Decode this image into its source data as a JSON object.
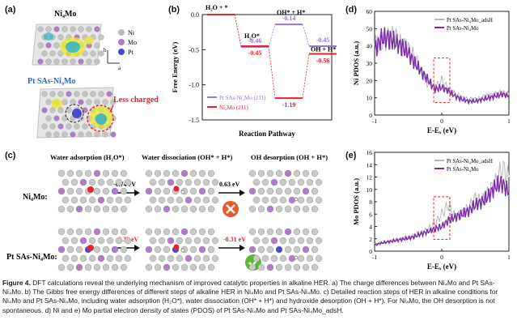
{
  "panel_a": {
    "label": "(a)",
    "top_title": "Ni₄Mo",
    "legend": [
      {
        "label": "Ni",
        "color": "#b9b9b9"
      },
      {
        "label": "Mo",
        "color": "#b07cc6"
      },
      {
        "label": "Pt",
        "color": "#4a4ad0"
      }
    ],
    "axis_b": "b",
    "axis_a": "a",
    "bottom_title": "Pt SAs-Ni₄Mo",
    "less_charged": "Less charged"
  },
  "panel_b": {
    "label": "(b)",
    "chart_data": {
      "type": "line",
      "title": "",
      "xlabel": "Reaction Pathway",
      "ylabel": "Free Energy (eV)",
      "ylim": [
        -1.5,
        0.0
      ],
      "yticks": [
        "0.0",
        "-0.5",
        "-1.0",
        "-1.5"
      ],
      "step_labels": [
        "H₂O + *",
        "H₂O*",
        "OH* + H*",
        "OH + H*"
      ],
      "series": [
        {
          "name": "Pt SAs-Ni₄Mo (211)",
          "color": "#9a78c9",
          "values": [
            0.0,
            -0.46,
            -0.14,
            -0.45
          ],
          "value_labels": [
            "",
            "-0.46",
            "-0.14",
            "-0.45"
          ]
        },
        {
          "name": "Ni₄Mo (211)",
          "color": "#e8232c",
          "values": [
            0.0,
            -0.45,
            -1.19,
            -0.56
          ],
          "value_labels": [
            "",
            "-0.45",
            "-1.19",
            "-0.56"
          ]
        }
      ]
    }
  },
  "panel_c": {
    "label": "(c)",
    "steps": [
      "Water adsorption (H₂O*)",
      "Water dissociation (OH* + H*)",
      "OH desorption (OH + H*)"
    ],
    "rows": [
      {
        "name": "Ni₄Mo:",
        "e1": "-0.74 eV",
        "e2": "0.63 eV",
        "result": "not spontaneous"
      },
      {
        "name": "Pt SAs-Ni₄Mo:",
        "e1": "0.32 eV",
        "e2": "-0.31 eV",
        "result": "spontaneous"
      }
    ]
  },
  "panel_d": {
    "label": "(d)",
    "chart_data": {
      "type": "line",
      "xlabel": "E-Eₓ (eV)",
      "ylabel": "Ni PDOS (a.u.)",
      "xlim": [
        -1,
        1
      ],
      "ylim": [
        0,
        60
      ],
      "xticks": [
        "-1",
        "0",
        "1"
      ],
      "yticks": [
        "0",
        "10",
        "20",
        "30",
        "40",
        "50",
        "60"
      ],
      "x": [
        -1.0,
        -0.9,
        -0.8,
        -0.7,
        -0.6,
        -0.5,
        -0.4,
        -0.3,
        -0.2,
        -0.1,
        0.0,
        0.1,
        0.2,
        0.3,
        0.4,
        0.5,
        0.6,
        0.7,
        0.8,
        0.9,
        1.0
      ],
      "series": [
        {
          "name": "Pt SAs-Ni₄Mo_adsH",
          "color": "#b8b8b8",
          "values": [
            40,
            42,
            44,
            46,
            40,
            38,
            33,
            24,
            18,
            16,
            20,
            15,
            12,
            10,
            9,
            9,
            10,
            11,
            12,
            13,
            12
          ]
        },
        {
          "name": "Pt SAs-Ni₄Mo",
          "color": "#7a2aa8",
          "values": [
            38,
            44,
            45,
            42,
            40,
            36,
            30,
            25,
            20,
            15,
            16,
            14,
            11,
            9,
            8,
            8,
            9,
            10,
            11,
            12,
            11
          ]
        }
      ]
    }
  },
  "panel_e": {
    "label": "(e)",
    "chart_data": {
      "type": "line",
      "xlabel": "E-Eₓ (eV)",
      "ylabel": "Mo PDOS (a.u.)",
      "xlim": [
        -1,
        1
      ],
      "ylim": [
        0,
        16
      ],
      "xticks": [
        "-1",
        "0",
        "1"
      ],
      "yticks": [
        "0",
        "2",
        "4",
        "6",
        "8",
        "10",
        "12",
        "14",
        "16"
      ],
      "x": [
        -1.0,
        -0.9,
        -0.8,
        -0.7,
        -0.6,
        -0.5,
        -0.4,
        -0.3,
        -0.2,
        -0.1,
        0.0,
        0.1,
        0.2,
        0.3,
        0.4,
        0.5,
        0.6,
        0.7,
        0.8,
        0.9,
        1.0
      ],
      "series": [
        {
          "name": "Pt SAs-Ni₄Mo_adsH",
          "color": "#b8b8b8",
          "values": [
            1.2,
            1.4,
            1.6,
            1.8,
            2.0,
            2.2,
            2.6,
            3.0,
            3.6,
            4.5,
            6.0,
            7.5,
            5.5,
            6.0,
            7.0,
            8.5,
            8.0,
            9.5,
            11.0,
            13.5,
            12.0
          ]
        },
        {
          "name": "Pt SAs-Ni₄Mo",
          "color": "#7a2aa8",
          "values": [
            1.0,
            1.3,
            1.5,
            1.7,
            1.9,
            2.1,
            2.4,
            2.8,
            3.2,
            3.6,
            4.0,
            5.0,
            5.5,
            6.0,
            6.5,
            7.5,
            8.0,
            9.0,
            10.5,
            11.0,
            9.5
          ]
        }
      ]
    }
  },
  "caption": {
    "fig": "Figure 4.",
    "text": "DFT calculations reveal the underlying mechanism of improved catalytic properties in alkaline HER. a) The charge differences between Ni₄Mo and Pt SAs-Ni₄Mo. b) The Gibbs free energy differences of different steps of alkaline HER in Ni₄Mo and Pt SAs-Ni₄Mo. c) Detailed reaction steps of HER in alkaline conditions for Ni₄Mo and Pt SAs-Ni₄Mo, including water adsorption (H₂O*), water dissociation (OH* + H*) and hydroxide desorption (OH + H*). For Ni₄Mo, the OH desorption is not spontaneous. d) Ni and e) Mo partial electron density of states (PDOS) of Pt SAs-Ni₄Mo and Pt SAs-Ni₄Mo_adsH."
  }
}
